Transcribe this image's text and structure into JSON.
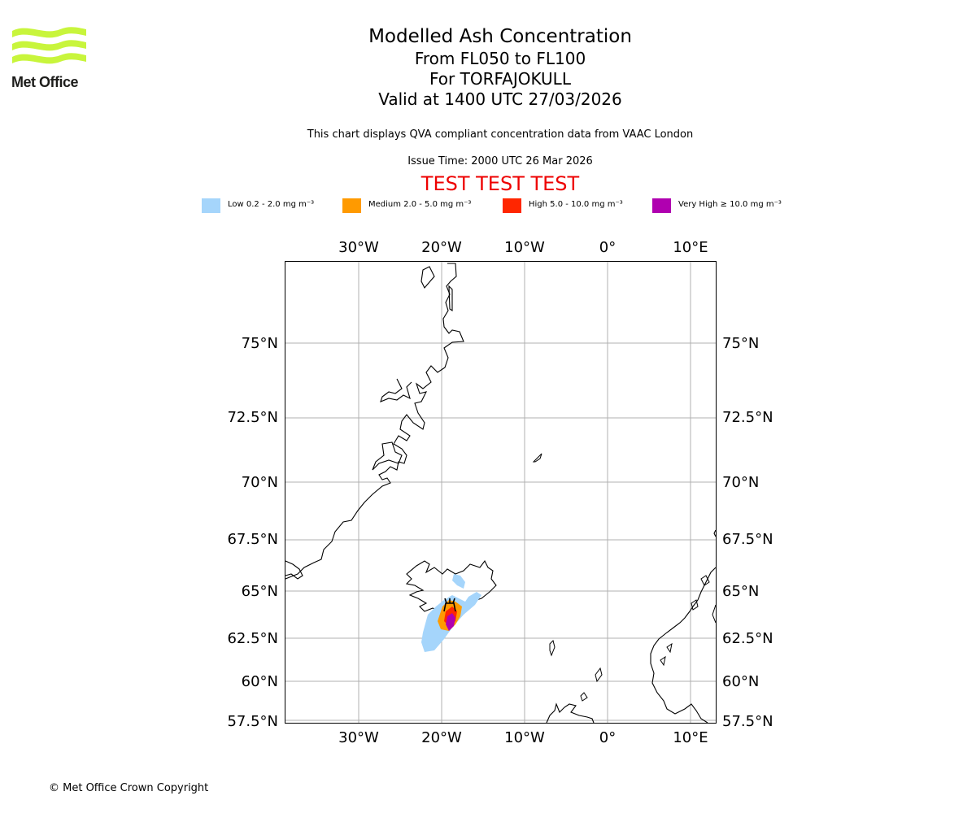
{
  "header": {
    "brand_name": "Met Office",
    "title": "Modelled Ash Concentration",
    "level_range": "From FL050 to FL100",
    "volcano_line": "For TORFAJOKULL",
    "valid_time": "Valid at 1400 UTC 27/03/2026",
    "compliance_note": "This chart displays QVA compliant concentration data from VAAC London",
    "issue_time": "Issue Time: 2000 UTC 26 Mar 2026",
    "test_banner": "TEST TEST TEST"
  },
  "legend": {
    "items": [
      {
        "label": "Low 0.2 - 2.0 mg m⁻³",
        "color": "#a5d5fb"
      },
      {
        "label": "Medium 2.0 - 5.0 mg m⁻³",
        "color": "#ff9a00"
      },
      {
        "label": "High 5.0 - 10.0 mg m⁻³",
        "color": "#ff2600"
      },
      {
        "label": "Very High ≥ 10.0 mg m⁻³",
        "color": "#b000b0"
      }
    ]
  },
  "map": {
    "longitude_labels": [
      "30°W",
      "20°W",
      "10°W",
      "0°",
      "10°E"
    ],
    "latitude_labels": [
      "75°N",
      "72.5°N",
      "70°N",
      "67.5°N",
      "65°N",
      "62.5°N",
      "60°N",
      "57.5°N"
    ],
    "volcano_name": "TORFAJOKULL"
  },
  "footer": {
    "copyright": "© Met Office Crown Copyright"
  },
  "colors": {
    "logo_green": "#c8f53c",
    "grid": "#b0b0b0",
    "coast": "#000000",
    "test_red": "#ee0000"
  }
}
